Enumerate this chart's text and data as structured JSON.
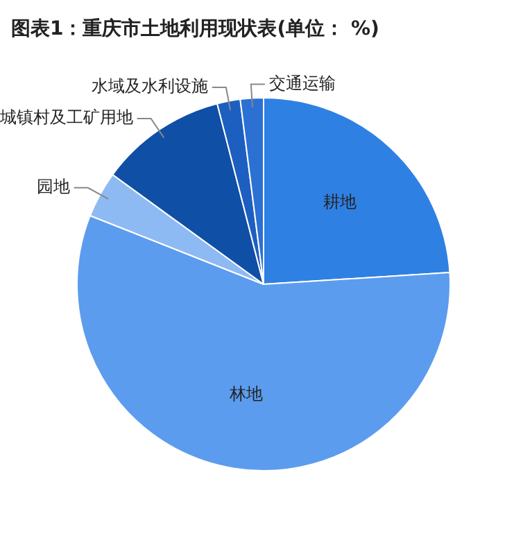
{
  "chart_data": {
    "type": "pie",
    "title": "图表1：重庆市土地利用现状表(单位： %)",
    "categories": [
      "耕地",
      "林地",
      "园地",
      "城镇村及工矿用地",
      "水域及水利设施",
      "交通运输"
    ],
    "values": [
      24,
      57,
      4,
      11,
      2,
      2
    ],
    "colors": [
      "#2f80e3",
      "#5c9cee",
      "#8dbaf3",
      "#0f4fa6",
      "#1d5fc0",
      "#2c70d4"
    ]
  }
}
